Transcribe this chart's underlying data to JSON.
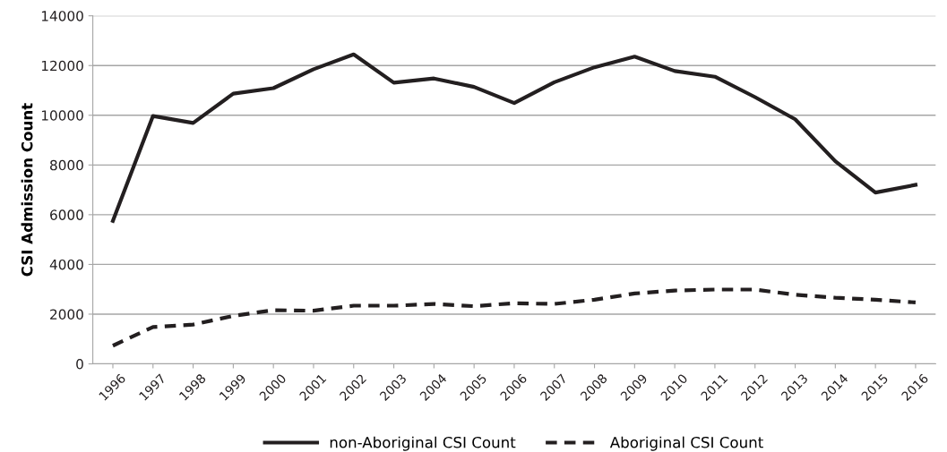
{
  "chart_data": {
    "type": "line",
    "ylabel": "CSI Admission Count",
    "categories": [
      "1996",
      "1997",
      "1998",
      "1999",
      "2000",
      "2001",
      "2002",
      "2003",
      "2004",
      "2005",
      "2006",
      "2007",
      "2008",
      "2009",
      "2010",
      "2011",
      "2012",
      "2013",
      "2014",
      "2015",
      "2016"
    ],
    "series": [
      {
        "name": "non-Aboriginal CSI Count",
        "color": "#231f20",
        "line_style": "solid",
        "values": [
          5750,
          9970,
          9690,
          10870,
          11090,
          11850,
          12450,
          11310,
          11480,
          11140,
          10490,
          11330,
          11930,
          12360,
          11780,
          11550,
          10730,
          9840,
          8150,
          6890,
          7200
        ]
      },
      {
        "name": "Aboriginal CSI Count",
        "color": "#231f20",
        "line_style": "dashed",
        "values": [
          730,
          1480,
          1580,
          1930,
          2160,
          2140,
          2340,
          2340,
          2410,
          2320,
          2440,
          2410,
          2580,
          2830,
          2950,
          2990,
          2990,
          2780,
          2660,
          2580,
          2470
        ]
      }
    ],
    "ylim": [
      0,
      14000
    ],
    "yticks": [
      0,
      2000,
      4000,
      6000,
      8000,
      10000,
      12000,
      14000
    ],
    "grid": "y",
    "legend": "bottom",
    "marker": "none"
  }
}
